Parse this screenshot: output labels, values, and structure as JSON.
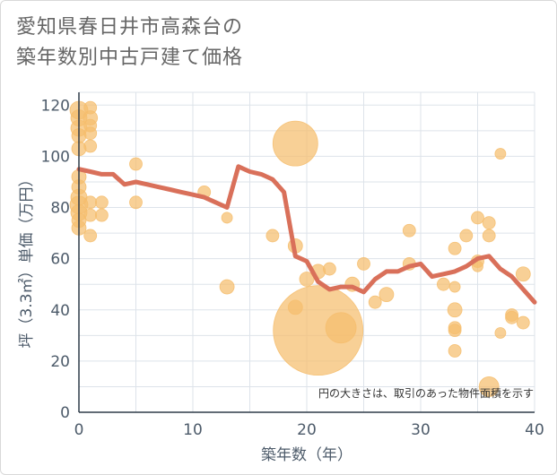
{
  "title_lines": [
    "愛知県春日井市高森台の",
    "築年数別中古戸建て価格"
  ],
  "chart_data": {
    "type": "scatter",
    "title": "愛知県春日井市高森台の築年数別中古戸建て価格",
    "xlabel": "築年数（年）",
    "ylabel": "坪（3.3㎡）単価（万円）",
    "xlim": [
      0,
      40
    ],
    "ylim": [
      0,
      125
    ],
    "xticks": [
      0,
      10,
      20,
      30,
      40
    ],
    "yticks": [
      0,
      20,
      40,
      60,
      80,
      100,
      120
    ],
    "grid": true,
    "annotation": "円の大きさは、取引のあった物件面積を示す",
    "colors": {
      "bubble": "#f5be6e",
      "line": "#d9705a",
      "grid": "#dde3ea"
    },
    "series": [
      {
        "name": "trend",
        "kind": "line",
        "x": [
          0,
          1,
          2,
          3,
          4,
          5,
          6,
          7,
          8,
          9,
          10,
          11,
          12,
          13,
          14,
          15,
          16,
          17,
          18,
          19,
          20,
          21,
          22,
          23,
          24,
          25,
          26,
          27,
          28,
          29,
          30,
          31,
          32,
          33,
          34,
          35,
          36,
          37,
          38,
          39,
          40
        ],
        "y": [
          95,
          94,
          93,
          93,
          89,
          90,
          89,
          88,
          87,
          86,
          85,
          84,
          82,
          80,
          96,
          94,
          93,
          91,
          86,
          61,
          59,
          51,
          48,
          49,
          49,
          47,
          52,
          55,
          55,
          57,
          58,
          53,
          54,
          55,
          57,
          60,
          61,
          56,
          53,
          48,
          43
        ]
      },
      {
        "name": "transactions",
        "kind": "bubble",
        "points": [
          {
            "x": 0,
            "y": 118,
            "s": 10
          },
          {
            "x": 0,
            "y": 115,
            "s": 9
          },
          {
            "x": 0,
            "y": 111,
            "s": 9
          },
          {
            "x": 0,
            "y": 108,
            "s": 8
          },
          {
            "x": 0,
            "y": 103,
            "s": 8
          },
          {
            "x": 0,
            "y": 92,
            "s": 8
          },
          {
            "x": 0,
            "y": 88,
            "s": 8
          },
          {
            "x": 0,
            "y": 84,
            "s": 9
          },
          {
            "x": 0,
            "y": 81,
            "s": 10
          },
          {
            "x": 0,
            "y": 78,
            "s": 9
          },
          {
            "x": 0,
            "y": 75,
            "s": 8
          },
          {
            "x": 0,
            "y": 72,
            "s": 8
          },
          {
            "x": 1,
            "y": 119,
            "s": 7
          },
          {
            "x": 1,
            "y": 115,
            "s": 8
          },
          {
            "x": 1,
            "y": 112,
            "s": 7
          },
          {
            "x": 1,
            "y": 109,
            "s": 7
          },
          {
            "x": 1,
            "y": 104,
            "s": 7
          },
          {
            "x": 1,
            "y": 82,
            "s": 7
          },
          {
            "x": 1,
            "y": 77,
            "s": 7
          },
          {
            "x": 1,
            "y": 69,
            "s": 7
          },
          {
            "x": 2,
            "y": 82,
            "s": 7
          },
          {
            "x": 2,
            "y": 77,
            "s": 7
          },
          {
            "x": 5,
            "y": 97,
            "s": 7
          },
          {
            "x": 5,
            "y": 82,
            "s": 7
          },
          {
            "x": 11,
            "y": 86,
            "s": 7
          },
          {
            "x": 13,
            "y": 76,
            "s": 6
          },
          {
            "x": 13,
            "y": 49,
            "s": 8
          },
          {
            "x": 17,
            "y": 69,
            "s": 7
          },
          {
            "x": 19,
            "y": 105,
            "s": 25
          },
          {
            "x": 19,
            "y": 65,
            "s": 8
          },
          {
            "x": 19,
            "y": 41,
            "s": 8
          },
          {
            "x": 20,
            "y": 52,
            "s": 8
          },
          {
            "x": 21,
            "y": 55,
            "s": 8
          },
          {
            "x": 21,
            "y": 32,
            "s": 50
          },
          {
            "x": 22,
            "y": 56,
            "s": 7
          },
          {
            "x": 23,
            "y": 33,
            "s": 17
          },
          {
            "x": 24,
            "y": 50,
            "s": 8
          },
          {
            "x": 25,
            "y": 58,
            "s": 7
          },
          {
            "x": 26,
            "y": 43,
            "s": 7
          },
          {
            "x": 27,
            "y": 46,
            "s": 8
          },
          {
            "x": 29,
            "y": 71,
            "s": 7
          },
          {
            "x": 29,
            "y": 58,
            "s": 7
          },
          {
            "x": 32,
            "y": 50,
            "s": 7
          },
          {
            "x": 33,
            "y": 64,
            "s": 7
          },
          {
            "x": 33,
            "y": 49,
            "s": 6
          },
          {
            "x": 33,
            "y": 40,
            "s": 8
          },
          {
            "x": 33,
            "y": 33,
            "s": 7
          },
          {
            "x": 33,
            "y": 32,
            "s": 7
          },
          {
            "x": 33,
            "y": 24,
            "s": 7
          },
          {
            "x": 34,
            "y": 69,
            "s": 7
          },
          {
            "x": 35,
            "y": 76,
            "s": 7
          },
          {
            "x": 35,
            "y": 59,
            "s": 7
          },
          {
            "x": 35,
            "y": 57,
            "s": 6
          },
          {
            "x": 36,
            "y": 74,
            "s": 7
          },
          {
            "x": 36,
            "y": 69,
            "s": 7
          },
          {
            "x": 36,
            "y": 10,
            "s": 11
          },
          {
            "x": 37,
            "y": 101,
            "s": 6
          },
          {
            "x": 37,
            "y": 31,
            "s": 6
          },
          {
            "x": 38,
            "y": 38,
            "s": 7
          },
          {
            "x": 38,
            "y": 37,
            "s": 7
          },
          {
            "x": 39,
            "y": 54,
            "s": 8
          },
          {
            "x": 39,
            "y": 35,
            "s": 7
          }
        ]
      }
    ]
  }
}
